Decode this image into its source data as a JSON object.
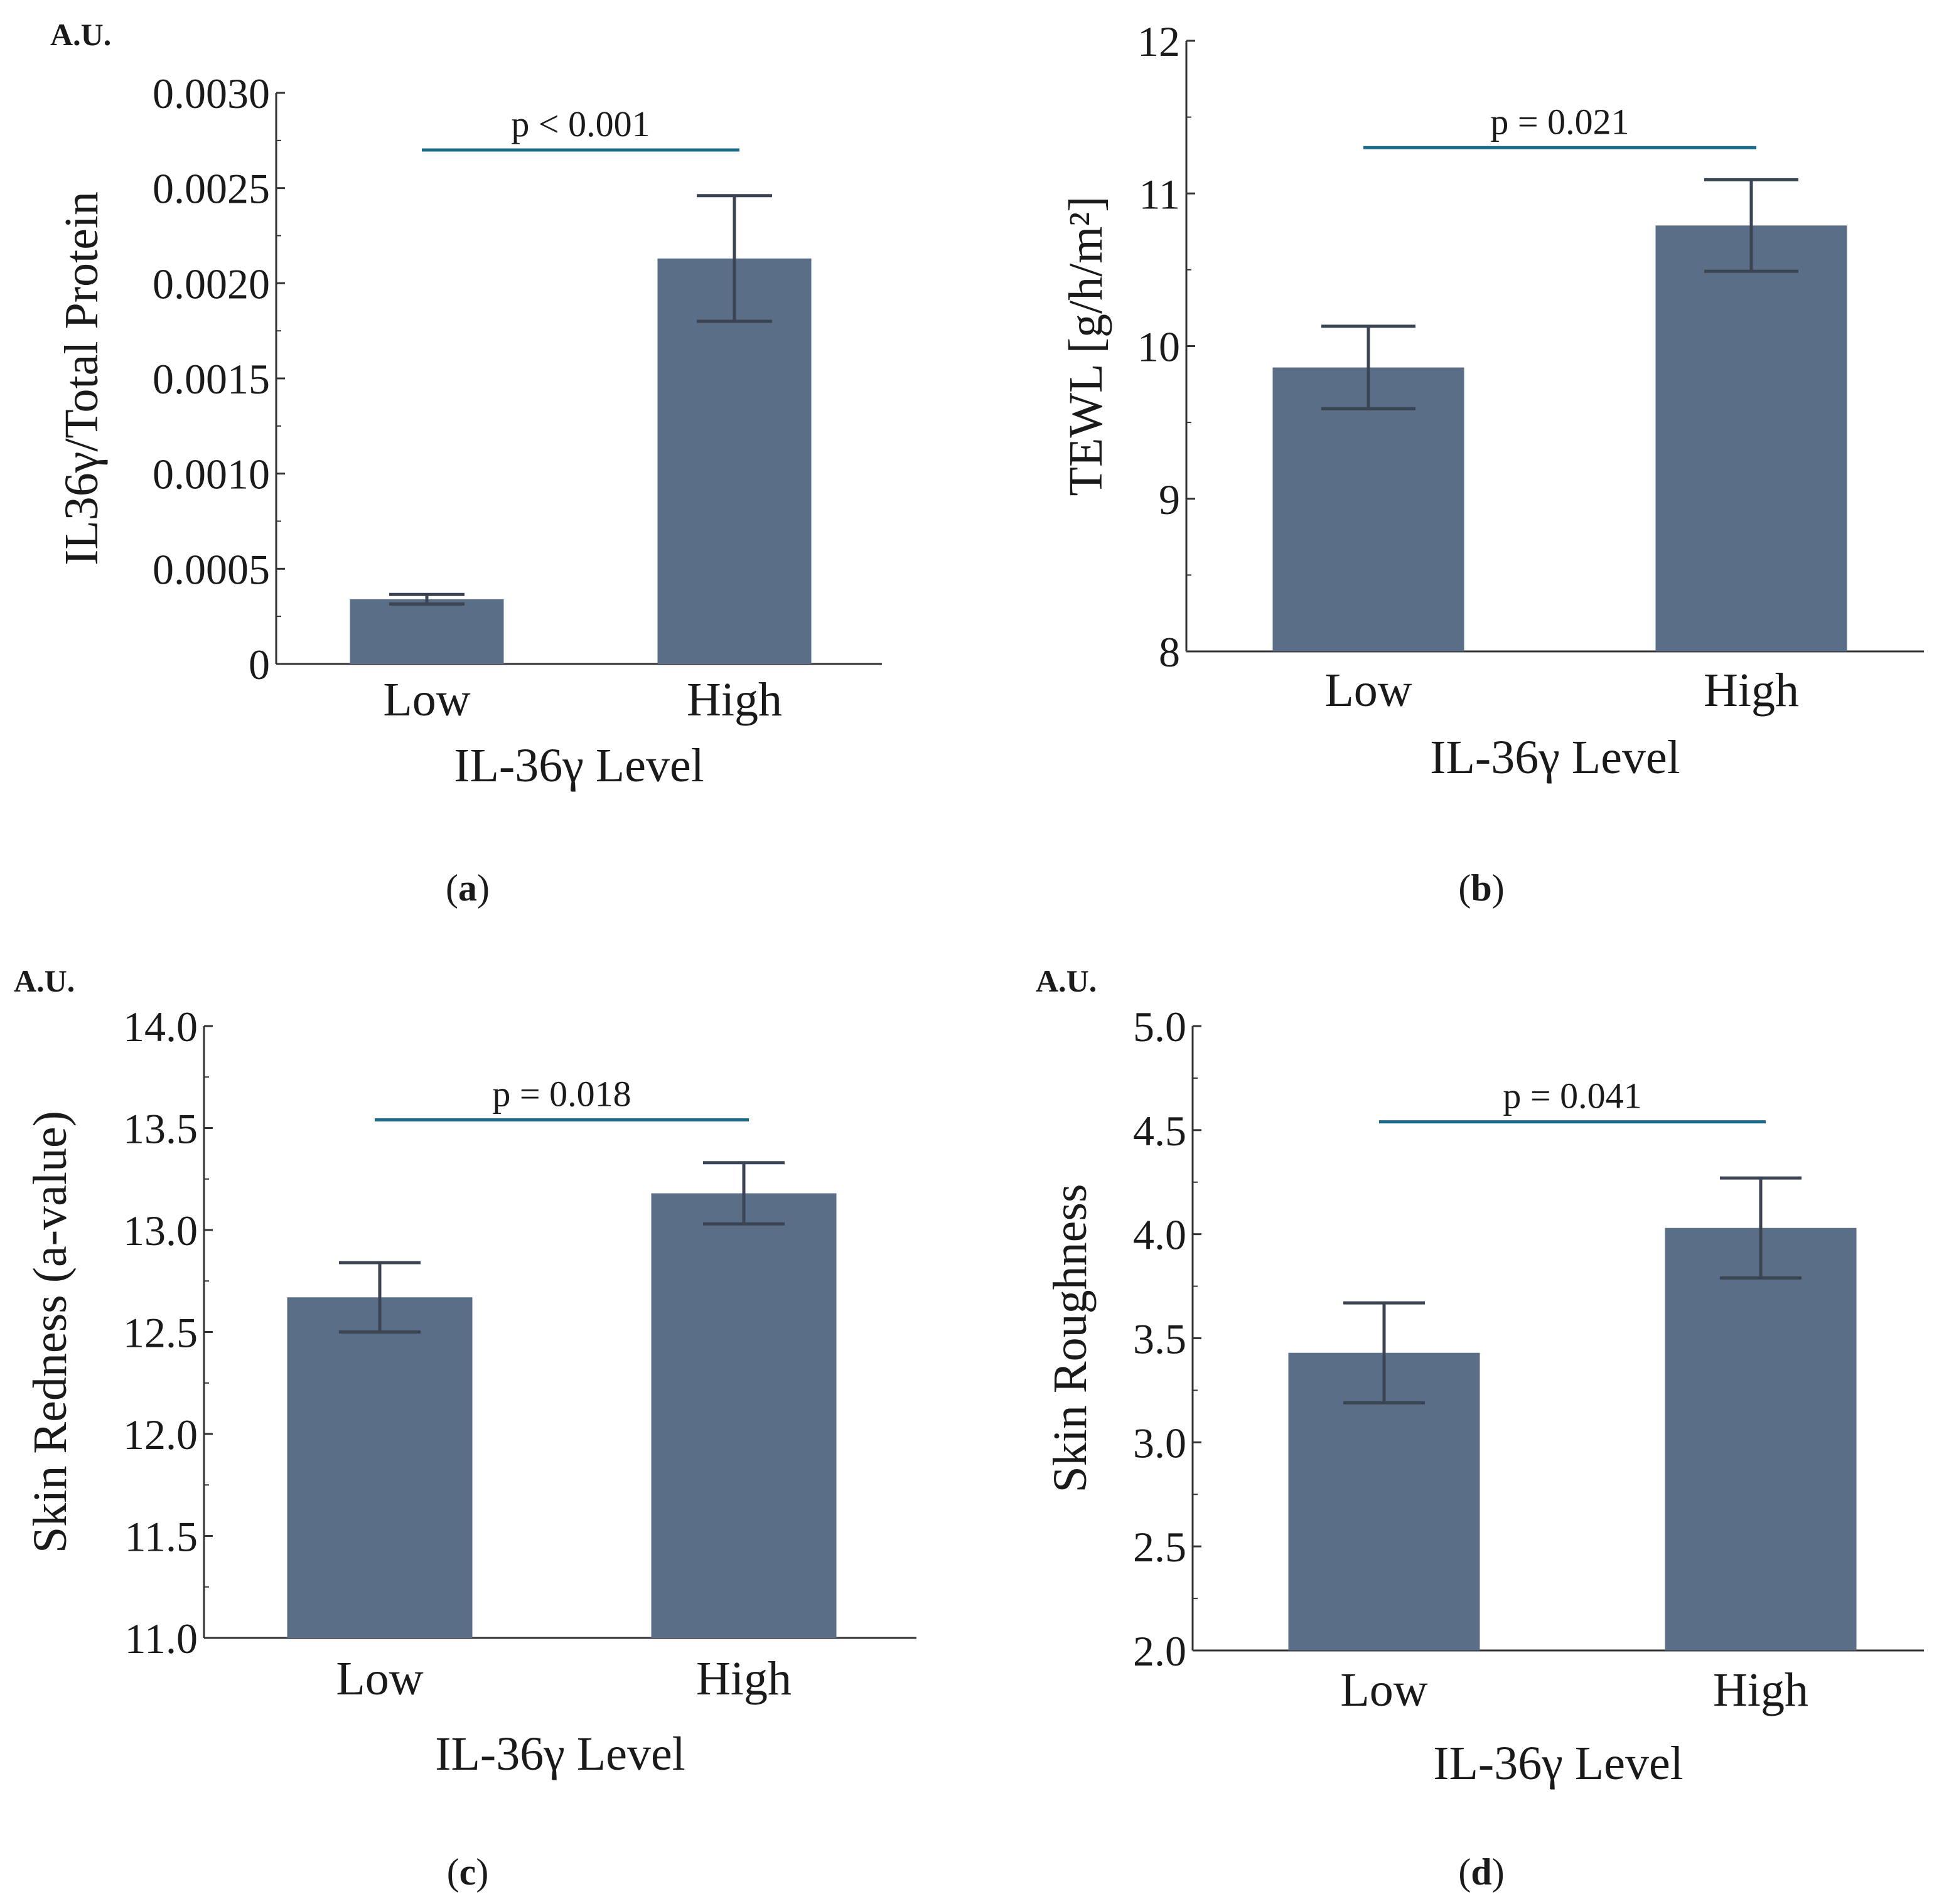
{
  "style": {
    "bar_color": "#5a6e87",
    "error_color": "#3a4452",
    "sig_line_color": "#1a6a8a",
    "axis_color": "#333333"
  },
  "chart_data": [
    {
      "type": "bar",
      "panel_label": "a",
      "unit_label": "A.U.",
      "ylabel": "IL36γ/Total Protein",
      "xlabel": "IL-36γ Level",
      "categories": [
        "Low",
        "High"
      ],
      "values": [
        0.00034,
        0.00213
      ],
      "errors": [
        2.5e-05,
        0.00033
      ],
      "ylim": [
        0,
        0.003
      ],
      "yticks": [
        0,
        0.0005,
        0.001,
        0.0015,
        0.002,
        0.0025,
        0.003
      ],
      "ytick_labels": [
        "0",
        "0.0005",
        "0.0010",
        "0.0015",
        "0.0020",
        "0.0025",
        "0.0030"
      ],
      "minor_ticks_per_major": 1,
      "significance": {
        "label": "p < 0.001",
        "y": 0.0027
      }
    },
    {
      "type": "bar",
      "panel_label": "b",
      "unit_label": "",
      "ylabel": "TEWL [g/h/m²]",
      "xlabel": "IL-36γ Level",
      "categories": [
        "Low",
        "High"
      ],
      "values": [
        9.86,
        10.79
      ],
      "errors": [
        0.27,
        0.3
      ],
      "ylim": [
        8,
        12
      ],
      "yticks": [
        8,
        9,
        10,
        11,
        12
      ],
      "ytick_labels": [
        "8",
        "9",
        "10",
        "11",
        "12"
      ],
      "minor_ticks_per_major": 1,
      "significance": {
        "label": "p = 0.021",
        "y": 11.3
      }
    },
    {
      "type": "bar",
      "panel_label": "c",
      "unit_label": "A.U.",
      "ylabel": "Skin Redness (a-value)",
      "xlabel": "IL-36γ Level",
      "categories": [
        "Low",
        "High"
      ],
      "values": [
        12.67,
        13.18
      ],
      "errors": [
        0.17,
        0.15
      ],
      "ylim": [
        11,
        14
      ],
      "yticks": [
        11,
        11.5,
        12,
        12.5,
        13,
        13.5,
        14
      ],
      "ytick_labels": [
        "11.0",
        "11.5",
        "12.0",
        "12.5",
        "13.0",
        "13.5",
        "14.0"
      ],
      "minor_ticks_per_major": 1,
      "significance": {
        "label": "p = 0.018",
        "y": 13.54
      }
    },
    {
      "type": "bar",
      "panel_label": "d",
      "unit_label": "A.U.",
      "ylabel": "Skin Roughness",
      "xlabel": "IL-36γ Level",
      "categories": [
        "Low",
        "High"
      ],
      "values": [
        3.43,
        4.03
      ],
      "errors": [
        0.24,
        0.24
      ],
      "ylim": [
        2,
        5
      ],
      "yticks": [
        2,
        2.5,
        3,
        3.5,
        4,
        4.5,
        5
      ],
      "ytick_labels": [
        "2.0",
        "2.5",
        "3.0",
        "3.5",
        "4.0",
        "4.5",
        "5.0"
      ],
      "minor_ticks_per_major": 1,
      "significance": {
        "label": "p = 0.041",
        "y": 4.54
      }
    }
  ]
}
